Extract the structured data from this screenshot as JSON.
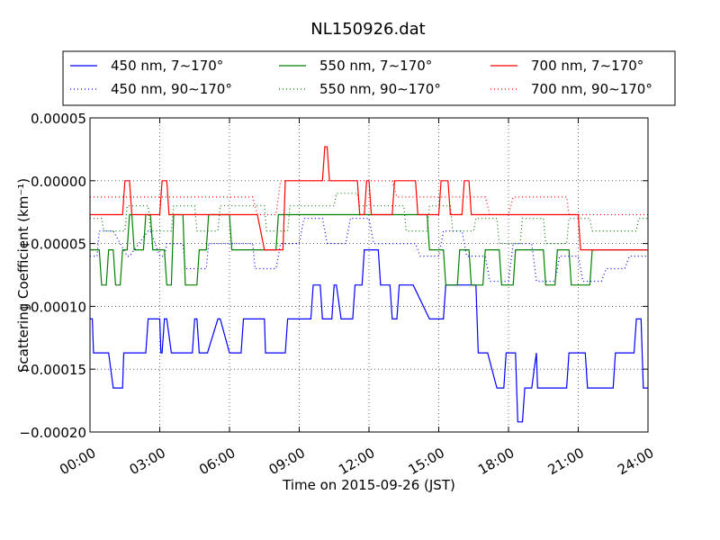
{
  "chart_data": {
    "type": "line",
    "title": "NL150926.dat",
    "xlabel": "Time on 2015-09-26 (JST)",
    "ylabel": "Scattering Coefficient (km⁻¹)",
    "xlim": [
      "00:00",
      "24:00"
    ],
    "ylim": [
      -0.0002,
      5e-05
    ],
    "x_ticks": [
      "00:00",
      "03:00",
      "06:00",
      "09:00",
      "12:00",
      "15:00",
      "18:00",
      "21:00",
      "24:00"
    ],
    "y_ticks": [
      "0.00005",
      "0.00000",
      "−0.00005",
      "−0.00010",
      "−0.00015",
      "−0.00020"
    ],
    "grid": true,
    "legend_position": "top, above plot",
    "colors": {
      "blue": "#0000ff",
      "green": "#008000",
      "red": "#ff0000"
    },
    "series": [
      {
        "name": "450 nm, 7∼170°",
        "color": "#0000ff",
        "style": "solid",
        "x": [
          0.0,
          0.1,
          0.15,
          0.2,
          0.7,
          0.8,
          1.0,
          1.4,
          1.45,
          2.4,
          2.5,
          3.0,
          3.05,
          3.1,
          3.2,
          3.3,
          3.5,
          3.55,
          4.0,
          4.1,
          4.4,
          4.5,
          4.6,
          4.7,
          5.0,
          5.05,
          5.5,
          5.6,
          6.0,
          6.1,
          6.5,
          6.6,
          6.7,
          7.5,
          7.55,
          8.0,
          8.1,
          8.4,
          8.5,
          8.7,
          8.8,
          9.0,
          9.5,
          9.6,
          9.9,
          10.0,
          10.1,
          10.4,
          10.5,
          10.6,
          10.8,
          10.9,
          11.3,
          11.4,
          11.7,
          11.8,
          12.0,
          12.4,
          12.5,
          12.9,
          13.0,
          13.2,
          13.3,
          13.5,
          13.8,
          13.9,
          14.6,
          14.7,
          15.2,
          15.3,
          16.0,
          16.1,
          16.6,
          16.7,
          17.0,
          17.1,
          17.5,
          17.8,
          17.9,
          18.3,
          18.4,
          18.6,
          18.7,
          19.0,
          19.2,
          19.25,
          20.5,
          20.6,
          20.8,
          21.3,
          21.4,
          22.0,
          22.5,
          22.6,
          23.4,
          23.5,
          23.7,
          23.8,
          24.0
        ],
        "y": [
          -0.00011,
          -0.00011,
          -0.000137,
          -0.000137,
          -0.000137,
          -0.000137,
          -0.000165,
          -0.000165,
          -0.000137,
          -0.000137,
          -0.00011,
          -0.00011,
          -0.000137,
          -0.000137,
          -0.00011,
          -0.00011,
          -0.000137,
          -0.000137,
          -0.000137,
          -0.000137,
          -0.000137,
          -0.00011,
          -0.00011,
          -0.000137,
          -0.000137,
          -0.000137,
          -0.00011,
          -0.00011,
          -0.000137,
          -0.000137,
          -0.000137,
          -0.00011,
          -0.00011,
          -0.00011,
          -0.000137,
          -0.000137,
          -0.000137,
          -0.000137,
          -0.00011,
          -0.00011,
          -0.00011,
          -0.00011,
          -0.00011,
          -8.3e-05,
          -8.3e-05,
          -0.00011,
          -0.00011,
          -0.00011,
          -8.3e-05,
          -8.3e-05,
          -0.00011,
          -0.00011,
          -0.00011,
          -8.3e-05,
          -8.3e-05,
          -5.5e-05,
          -5.5e-05,
          -5.5e-05,
          -8.3e-05,
          -8.3e-05,
          -0.00011,
          -0.00011,
          -8.3e-05,
          -8.3e-05,
          -8.3e-05,
          -8.3e-05,
          -0.00011,
          -0.00011,
          -0.00011,
          -8.3e-05,
          -8.3e-05,
          -8.3e-05,
          -8.3e-05,
          -0.000137,
          -0.000137,
          -0.000137,
          -0.000165,
          -0.000165,
          -0.000137,
          -0.000137,
          -0.000192,
          -0.000192,
          -0.000165,
          -0.000165,
          -0.000137,
          -0.000165,
          -0.000165,
          -0.000137,
          -0.000137,
          -0.000137,
          -0.000165,
          -0.000165,
          -0.000165,
          -0.000137,
          -0.000137,
          -0.00011,
          -0.00011,
          -0.000165,
          -0.000165
        ]
      },
      {
        "name": "450 nm, 90∼170°",
        "color": "#0000ff",
        "style": "dotted",
        "x": [
          0.0,
          0.3,
          0.4,
          1.0,
          1.6,
          1.7,
          2.5,
          2.6,
          3.0,
          3.2,
          3.3,
          4.0,
          4.1,
          5.0,
          5.1,
          6.0,
          6.1,
          7.0,
          7.1,
          8.0,
          8.2,
          9.0,
          9.2,
          10.0,
          10.2,
          11.0,
          11.2,
          12.0,
          12.2,
          13.0,
          13.2,
          14.0,
          14.2,
          15.0,
          15.2,
          16.0,
          16.2,
          17.0,
          17.2,
          18.0,
          18.2,
          19.0,
          19.2,
          20.0,
          20.2,
          21.0,
          21.2,
          22.0,
          22.2,
          23.0,
          23.2,
          24.0
        ],
        "y": [
          -6e-05,
          -6e-05,
          -4e-05,
          -4e-05,
          -6e-05,
          -6e-05,
          -4e-05,
          -4e-05,
          -6e-05,
          -6e-05,
          -5e-05,
          -5e-05,
          -7e-05,
          -7e-05,
          -5e-05,
          -5e-05,
          -5e-05,
          -5e-05,
          -7e-05,
          -7e-05,
          -5e-05,
          -5e-05,
          -3e-05,
          -3e-05,
          -5e-05,
          -5e-05,
          -3e-05,
          -3e-05,
          -5e-05,
          -5e-05,
          -5e-05,
          -5e-05,
          -6e-05,
          -6e-05,
          -4e-05,
          -4e-05,
          -6e-05,
          -6e-05,
          -8e-05,
          -8e-05,
          -5e-05,
          -5e-05,
          -8e-05,
          -8e-05,
          -6e-05,
          -6e-05,
          -8e-05,
          -8e-05,
          -7e-05,
          -7e-05,
          -6e-05,
          -6e-05
        ]
      },
      {
        "name": "550 nm, 7∼170°",
        "color": "#008000",
        "style": "solid",
        "x": [
          0.0,
          0.4,
          0.5,
          0.7,
          0.8,
          1.0,
          1.1,
          1.3,
          1.4,
          1.6,
          1.7,
          1.8,
          1.9,
          2.3,
          2.4,
          2.6,
          2.7,
          3.2,
          3.3,
          3.5,
          3.6,
          4.0,
          4.1,
          4.6,
          4.7,
          5.0,
          5.1,
          6.0,
          6.1,
          7.0,
          7.1,
          8.0,
          8.1,
          8.3,
          8.4,
          9.3,
          9.4,
          10.0,
          10.1,
          10.3,
          10.4,
          10.7,
          10.8,
          11.2,
          11.3,
          12.3,
          12.4,
          13.0,
          13.1,
          14.5,
          14.6,
          15.2,
          15.3,
          15.8,
          15.9,
          16.3,
          16.4,
          16.9,
          17.0,
          17.6,
          17.7,
          18.2,
          18.3,
          19.5,
          19.6,
          20.0,
          20.1,
          20.6,
          20.7,
          21.5,
          21.6,
          22.4,
          22.5,
          23.8,
          23.9,
          24.0
        ],
        "y": [
          -5.5e-05,
          -5.5e-05,
          -8.3e-05,
          -8.3e-05,
          -5.5e-05,
          -5.5e-05,
          -8.3e-05,
          -8.3e-05,
          -5.5e-05,
          -5.5e-05,
          -2.7e-05,
          -2.7e-05,
          -5.5e-05,
          -5.5e-05,
          -2.7e-05,
          -2.7e-05,
          -5.5e-05,
          -5.5e-05,
          -8.3e-05,
          -8.3e-05,
          -2.7e-05,
          -2.7e-05,
          -8.3e-05,
          -8.3e-05,
          -5.5e-05,
          -5.5e-05,
          -2.7e-05,
          -2.7e-05,
          -5.5e-05,
          -5.5e-05,
          -5.5e-05,
          -5.5e-05,
          -2.7e-05,
          -2.7e-05,
          -2.7e-05,
          -2.7e-05,
          -2.7e-05,
          -2.7e-05,
          -2.7e-05,
          -2.7e-05,
          -2.7e-05,
          -2.7e-05,
          -2.7e-05,
          -2.7e-05,
          -2.7e-05,
          -2.7e-05,
          -2.7e-05,
          -2.7e-05,
          -2.7e-05,
          -2.7e-05,
          -5.5e-05,
          -5.5e-05,
          -8.3e-05,
          -8.3e-05,
          -5.5e-05,
          -5.5e-05,
          -8.3e-05,
          -8.3e-05,
          -5.5e-05,
          -5.5e-05,
          -8.3e-05,
          -8.3e-05,
          -5.5e-05,
          -5.5e-05,
          -8.3e-05,
          -8.3e-05,
          -5.5e-05,
          -5.5e-05,
          -8.3e-05,
          -8.3e-05,
          -5.5e-05,
          -5.5e-05,
          -5.5e-05,
          -5.5e-05,
          -5.5e-05,
          -5.5e-05
        ]
      },
      {
        "name": "550 nm, 90∼170°",
        "color": "#008000",
        "style": "dotted",
        "x": [
          0.0,
          0.5,
          0.6,
          1.5,
          1.6,
          2.5,
          2.6,
          3.5,
          3.6,
          4.5,
          4.6,
          5.5,
          5.6,
          6.5,
          6.6,
          7.5,
          7.6,
          8.5,
          8.6,
          9.5,
          9.6,
          10.5,
          10.6,
          11.5,
          11.6,
          12.5,
          12.6,
          13.5,
          13.6,
          14.5,
          14.6,
          15.5,
          15.6,
          16.5,
          16.6,
          17.5,
          17.6,
          18.5,
          18.6,
          19.5,
          19.6,
          20.5,
          20.6,
          21.5,
          21.6,
          22.5,
          22.6,
          23.5,
          23.6,
          24.0
        ],
        "y": [
          -3e-05,
          -3e-05,
          -4e-05,
          -4e-05,
          -2e-05,
          -2e-05,
          -4e-05,
          -4e-05,
          -2e-05,
          -2e-05,
          -4e-05,
          -4e-05,
          -2e-05,
          -2e-05,
          -2e-05,
          -2e-05,
          -4e-05,
          -4e-05,
          -2e-05,
          -2e-05,
          -2e-05,
          -2e-05,
          -1e-05,
          -1e-05,
          -2e-05,
          -2e-05,
          -2e-05,
          -2e-05,
          -4e-05,
          -4e-05,
          -2e-05,
          -2e-05,
          -4e-05,
          -4e-05,
          -3e-05,
          -3e-05,
          -5e-05,
          -5e-05,
          -3e-05,
          -3e-05,
          -5e-05,
          -5e-05,
          -3e-05,
          -3e-05,
          -4e-05,
          -4e-05,
          -4e-05,
          -4e-05,
          -3e-05,
          -3e-05
        ]
      },
      {
        "name": "700 nm, 7∼170°",
        "color": "#ff0000",
        "style": "solid",
        "x": [
          0.0,
          1.4,
          1.5,
          1.7,
          1.8,
          3.0,
          3.1,
          3.3,
          3.4,
          7.2,
          7.5,
          8.3,
          8.4,
          10.0,
          10.1,
          10.2,
          10.3,
          11.5,
          11.6,
          11.8,
          11.9,
          12.0,
          12.1,
          13.0,
          13.1,
          14.0,
          14.1,
          15.0,
          15.1,
          15.4,
          15.5,
          16.0,
          16.1,
          16.3,
          16.4,
          17.9,
          18.0,
          21.0,
          21.1,
          22.4,
          22.5,
          24.0
        ],
        "y": [
          -2.7e-05,
          -2.7e-05,
          0.0,
          0.0,
          -2.7e-05,
          -2.7e-05,
          0.0,
          0.0,
          -2.7e-05,
          -2.7e-05,
          -5.5e-05,
          -5.5e-05,
          0.0,
          0.0,
          2.7e-05,
          2.7e-05,
          0.0,
          0.0,
          -2.7e-05,
          -2.7e-05,
          0.0,
          0.0,
          -2.7e-05,
          -2.7e-05,
          0.0,
          0.0,
          -2.7e-05,
          -2.7e-05,
          0.0,
          0.0,
          -2.7e-05,
          -2.7e-05,
          0.0,
          0.0,
          -2.7e-05,
          -2.7e-05,
          -2.7e-05,
          -2.7e-05,
          -5.5e-05,
          -5.5e-05,
          -5.5e-05,
          -5.5e-05
        ]
      },
      {
        "name": "700 nm, 90∼170°",
        "color": "#ff0000",
        "style": "dotted",
        "x": [
          0.0,
          2.0,
          2.1,
          3.0,
          3.1,
          4.0,
          4.1,
          7.0,
          7.2,
          8.0,
          8.2,
          13.0,
          13.2,
          14.0,
          14.2,
          15.0,
          15.2,
          17.0,
          17.2,
          18.0,
          18.2,
          20.5,
          20.6,
          21.5,
          21.6,
          23.0,
          23.2,
          24.0
        ],
        "y": [
          -1.3e-05,
          -1.3e-05,
          -1.3e-05,
          -1.3e-05,
          -1.3e-05,
          -1.3e-05,
          -1.3e-05,
          -1.3e-05,
          -2.7e-05,
          -2.7e-05,
          0.0,
          0.0,
          -1.3e-05,
          -1.3e-05,
          -1.3e-05,
          -1.3e-05,
          -1.3e-05,
          -1.3e-05,
          -2.7e-05,
          -2.7e-05,
          -1.3e-05,
          -1.3e-05,
          -2.7e-05,
          -2.7e-05,
          -2.7e-05,
          -2.7e-05,
          -2.7e-05,
          -2.7e-05
        ]
      }
    ]
  }
}
